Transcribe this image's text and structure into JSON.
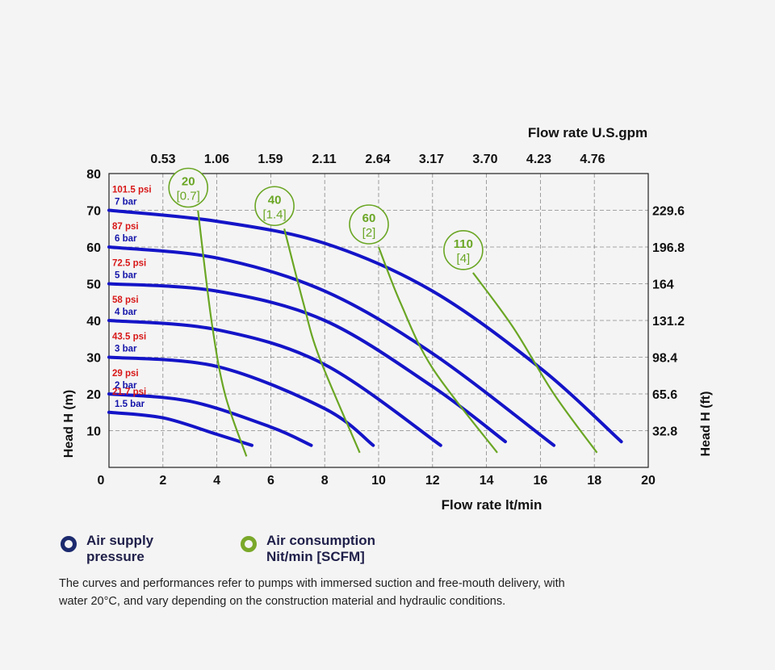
{
  "chart_data": {
    "type": "line",
    "xlabel": "Flow rate lt/min",
    "ylabel_left": "Head H (m)",
    "ylabel_right": "Head H (ft)",
    "top_axis_label": "Flow rate U.S.gpm",
    "xlim": [
      0,
      20
    ],
    "ylim": [
      0,
      80
    ],
    "x_ticks": [
      "0",
      "2",
      "4",
      "6",
      "8",
      "10",
      "12",
      "14",
      "16",
      "18",
      "20"
    ],
    "y_ticks": [
      "10",
      "20",
      "30",
      "40",
      "50",
      "60",
      "70",
      "80"
    ],
    "top_ticks": [
      "0.53",
      "1.06",
      "1.59",
      "2.11",
      "2.64",
      "3.17",
      "3.70",
      "4.23",
      "4.76"
    ],
    "right_ticks": [
      "32.8",
      "65.6",
      "98.4",
      "131.2",
      "164",
      "196.8",
      "229.6"
    ],
    "grid": true,
    "pressure_color": "#1414c8",
    "psi_color": "#d81818",
    "bar_color": "#1414aa",
    "air_color": "#6aa624",
    "pressure_series": [
      {
        "psi": "101.5 psi",
        "bar": "7 bar",
        "x": [
          0,
          4,
          8,
          12,
          16,
          19
        ],
        "y": [
          70,
          67,
          61,
          48,
          27,
          7
        ]
      },
      {
        "psi": "87 psi",
        "bar": "6 bar",
        "x": [
          0,
          4,
          8,
          12,
          16.5
        ],
        "y": [
          60,
          57,
          48,
          31,
          6
        ]
      },
      {
        "psi": "72.5 psi",
        "bar": "5 bar",
        "x": [
          0,
          4,
          8,
          12,
          14.7
        ],
        "y": [
          50,
          48,
          40,
          22,
          7
        ]
      },
      {
        "psi": "58 psi",
        "bar": "4 bar",
        "x": [
          0,
          4,
          8,
          12.3
        ],
        "y": [
          40,
          37.5,
          28,
          6
        ]
      },
      {
        "psi": "43.5 psi",
        "bar": "3 bar",
        "x": [
          0,
          4,
          8,
          9.8
        ],
        "y": [
          30,
          27.5,
          16,
          6
        ]
      },
      {
        "psi": "29 psi",
        "bar": "2 bar",
        "x": [
          0,
          3,
          6,
          7.5
        ],
        "y": [
          20,
          18,
          11,
          6
        ]
      },
      {
        "psi": "21.7 psi",
        "bar": "1.5 bar",
        "x": [
          0,
          2,
          4,
          5.3
        ],
        "y": [
          15,
          13.5,
          9,
          6
        ]
      }
    ],
    "air_series": [
      {
        "value": "20",
        "scfm": "[0.7]",
        "x": [
          3.3,
          3.8,
          4.3,
          5.1
        ],
        "y": [
          70,
          40,
          20,
          3
        ]
      },
      {
        "value": "40",
        "scfm": "[1.4]",
        "x": [
          6.5,
          7.2,
          7.8,
          9.3
        ],
        "y": [
          65,
          45,
          30,
          4
        ]
      },
      {
        "value": "60",
        "scfm": "[2]",
        "x": [
          10.0,
          10.8,
          12.0,
          14.4
        ],
        "y": [
          60,
          45,
          27,
          4
        ]
      },
      {
        "value": "110",
        "scfm": "[4]",
        "x": [
          13.5,
          15.0,
          16.5,
          18.1
        ],
        "y": [
          53,
          38,
          20,
          4
        ]
      }
    ]
  },
  "legend": {
    "pressure_line1": "Air supply",
    "pressure_line2": "pressure",
    "pressure_ring_color": "#1c2a6e",
    "air_line1": "Air consumption",
    "air_line2": "Nit/min [SCFM]",
    "air_ring_color": "#7aa82a"
  },
  "footnote": {
    "line1": "The curves and performances refer to pumps with immersed suction and free-mouth delivery, with",
    "line2": "water 20°C, and vary depending on the construction material and hydraulic conditions."
  }
}
